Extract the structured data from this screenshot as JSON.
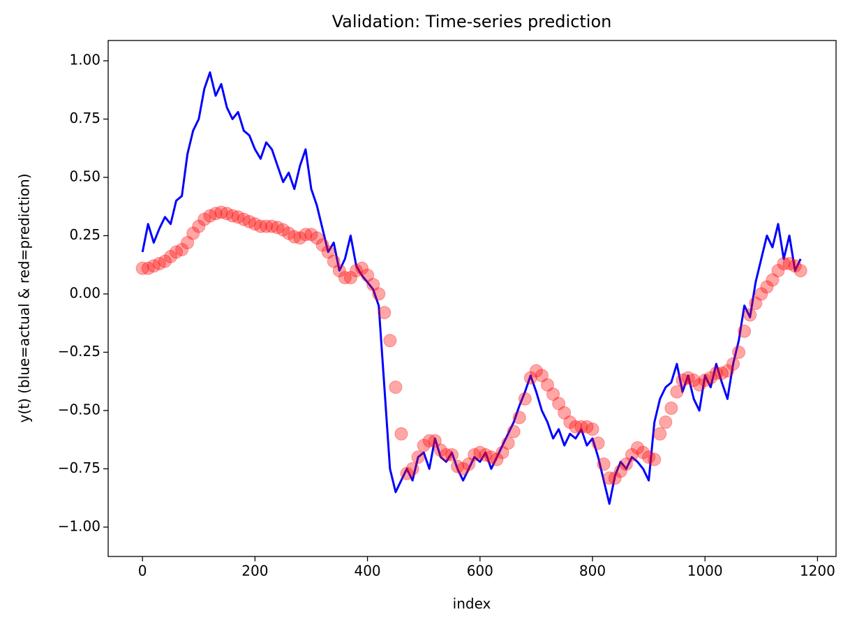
{
  "chart_data": {
    "type": "line",
    "title": "Validation: Time-series prediction",
    "xlabel": "index",
    "ylabel": "y(t) (blue=actual & red=prediction)",
    "x": [
      0,
      10,
      20,
      30,
      40,
      50,
      60,
      70,
      80,
      90,
      100,
      110,
      120,
      130,
      140,
      150,
      160,
      170,
      180,
      190,
      200,
      210,
      220,
      230,
      240,
      250,
      260,
      270,
      280,
      290,
      300,
      310,
      320,
      330,
      340,
      350,
      360,
      370,
      380,
      390,
      400,
      410,
      420,
      430,
      440,
      450,
      460,
      470,
      480,
      490,
      500,
      510,
      520,
      530,
      540,
      550,
      560,
      570,
      580,
      590,
      600,
      610,
      620,
      630,
      640,
      650,
      660,
      670,
      680,
      690,
      700,
      710,
      720,
      730,
      740,
      750,
      760,
      770,
      780,
      790,
      800,
      810,
      820,
      830,
      840,
      850,
      860,
      870,
      880,
      890,
      900,
      910,
      920,
      930,
      940,
      950,
      960,
      970,
      980,
      990,
      1000,
      1010,
      1020,
      1030,
      1040,
      1050,
      1060,
      1070,
      1080,
      1090,
      1100,
      1110,
      1120,
      1130,
      1140,
      1150,
      1160,
      1170
    ],
    "series": [
      {
        "name": "actual",
        "type": "line",
        "color": "#0000ff",
        "values": [
          0.18,
          0.3,
          0.22,
          0.28,
          0.33,
          0.3,
          0.4,
          0.42,
          0.6,
          0.7,
          0.75,
          0.88,
          0.95,
          0.85,
          0.9,
          0.8,
          0.75,
          0.78,
          0.7,
          0.68,
          0.62,
          0.58,
          0.65,
          0.62,
          0.55,
          0.48,
          0.52,
          0.45,
          0.55,
          0.62,
          0.45,
          0.38,
          0.28,
          0.18,
          0.22,
          0.1,
          0.15,
          0.25,
          0.12,
          0.08,
          0.05,
          0.02,
          -0.05,
          -0.4,
          -0.75,
          -0.85,
          -0.8,
          -0.75,
          -0.8,
          -0.7,
          -0.68,
          -0.75,
          -0.62,
          -0.7,
          -0.72,
          -0.68,
          -0.75,
          -0.8,
          -0.75,
          -0.7,
          -0.72,
          -0.68,
          -0.75,
          -0.7,
          -0.65,
          -0.6,
          -0.55,
          -0.48,
          -0.42,
          -0.35,
          -0.42,
          -0.5,
          -0.55,
          -0.62,
          -0.58,
          -0.65,
          -0.6,
          -0.62,
          -0.58,
          -0.65,
          -0.62,
          -0.7,
          -0.8,
          -0.9,
          -0.78,
          -0.72,
          -0.75,
          -0.7,
          -0.72,
          -0.75,
          -0.8,
          -0.55,
          -0.45,
          -0.4,
          -0.38,
          -0.3,
          -0.42,
          -0.35,
          -0.45,
          -0.5,
          -0.35,
          -0.4,
          -0.3,
          -0.38,
          -0.45,
          -0.3,
          -0.2,
          -0.05,
          -0.1,
          0.05,
          0.15,
          0.25,
          0.2,
          0.3,
          0.15,
          0.25,
          0.1,
          0.15
        ]
      },
      {
        "name": "prediction",
        "type": "scatter",
        "color": "#ff0000",
        "values": [
          0.11,
          0.11,
          0.12,
          0.13,
          0.14,
          0.16,
          0.18,
          0.19,
          0.22,
          0.26,
          0.29,
          0.32,
          0.335,
          0.345,
          0.35,
          0.345,
          0.335,
          0.33,
          0.32,
          0.31,
          0.3,
          0.29,
          0.29,
          0.29,
          0.285,
          0.275,
          0.26,
          0.245,
          0.24,
          0.255,
          0.255,
          0.24,
          0.21,
          0.18,
          0.14,
          0.1,
          0.07,
          0.07,
          0.1,
          0.11,
          0.08,
          0.04,
          0.0,
          -0.08,
          -0.2,
          -0.4,
          -0.6,
          -0.77,
          -0.75,
          -0.7,
          -0.65,
          -0.63,
          -0.63,
          -0.67,
          -0.69,
          -0.69,
          -0.74,
          -0.75,
          -0.73,
          -0.69,
          -0.68,
          -0.69,
          -0.7,
          -0.71,
          -0.68,
          -0.64,
          -0.59,
          -0.53,
          -0.45,
          -0.36,
          -0.33,
          -0.35,
          -0.39,
          -0.43,
          -0.47,
          -0.51,
          -0.55,
          -0.57,
          -0.57,
          -0.57,
          -0.58,
          -0.64,
          -0.73,
          -0.79,
          -0.79,
          -0.76,
          -0.73,
          -0.69,
          -0.66,
          -0.68,
          -0.7,
          -0.71,
          -0.6,
          -0.55,
          -0.49,
          -0.42,
          -0.37,
          -0.36,
          -0.37,
          -0.39,
          -0.37,
          -0.36,
          -0.34,
          -0.34,
          -0.33,
          -0.3,
          -0.25,
          -0.16,
          -0.09,
          -0.04,
          0.0,
          0.03,
          0.06,
          0.1,
          0.13,
          0.13,
          0.12,
          0.1
        ]
      }
    ],
    "xlim": [
      -61,
      1233
    ],
    "ylim": [
      -1.126,
      1.087
    ],
    "xticks": [
      0,
      200,
      400,
      600,
      800,
      1000,
      1200
    ],
    "yticks": [
      {
        "value": 1,
        "label": "1.00"
      },
      {
        "value": 0.75,
        "label": "0.75"
      },
      {
        "value": 0.5,
        "label": "0.50"
      },
      {
        "value": 0.25,
        "label": "0.25"
      },
      {
        "value": 0,
        "label": "0.00"
      },
      {
        "value": -0.25,
        "label": "−0.25"
      },
      {
        "value": -0.5,
        "label": "−0.50"
      },
      {
        "value": -0.75,
        "label": "−0.75"
      },
      {
        "value": -1,
        "label": "−1.00"
      }
    ]
  }
}
